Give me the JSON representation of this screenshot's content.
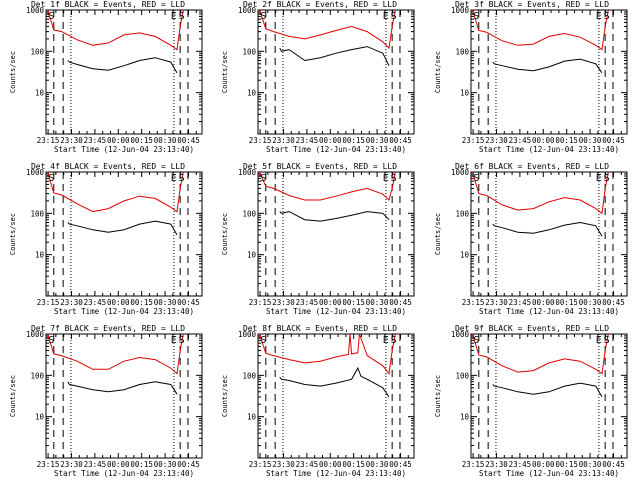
{
  "figure": {
    "title_template": "Det {n}f BLACK = Events, RED = LLD",
    "x_axis_label": "Start Time (12-Jun-04 23:13:40)",
    "y_axis_label": "Counts/sec",
    "x_tick_labels": [
      "23:15",
      "23:30",
      "23:45",
      "00:00",
      "00:15",
      "00:30",
      "00:45"
    ],
    "y_tick_labels": [
      "10",
      "100",
      "1000"
    ],
    "flag_labels": [
      "S",
      "E",
      "S"
    ],
    "colors": {
      "events": "#000000",
      "lld": "#e00000"
    }
  },
  "chart_data": [
    {
      "type": "line",
      "title": "Det 1f BLACK = Events, RED = LLD",
      "det": 1,
      "xlabel": "Start Time (12-Jun-04 23:13:40)",
      "ylabel": "Counts/sec",
      "x_unit": "minutes since 23:13:40",
      "xlim": [
        0,
        100
      ],
      "ylim": [
        1,
        1000
      ],
      "y_scale": "log",
      "series": [
        {
          "name": "LLD",
          "color": "red",
          "x": [
            1,
            5,
            10,
            20,
            30,
            40,
            50,
            60,
            70,
            80,
            84,
            86,
            88
          ],
          "y": [
            1000,
            330,
            300,
            190,
            140,
            160,
            250,
            280,
            230,
            140,
            110,
            400,
            1000
          ]
        },
        {
          "name": "Events",
          "color": "black",
          "x": [
            14,
            15,
            20,
            30,
            40,
            50,
            60,
            70,
            80,
            84
          ],
          "y": [
            60,
            55,
            48,
            38,
            35,
            45,
            60,
            70,
            55,
            30
          ]
        }
      ],
      "vlines": {
        "dashed": [
          5,
          11,
          86,
          91
        ],
        "dotted": [
          16,
          82
        ]
      },
      "flags": [
        "S",
        "E",
        "S"
      ]
    },
    {
      "type": "line",
      "title": "Det 2f BLACK = Events, RED = LLD",
      "det": 2,
      "xlabel": "Start Time (12-Jun-04 23:13:40)",
      "ylabel": "Counts/sec",
      "x_unit": "minutes since 23:13:40",
      "xlim": [
        0,
        100
      ],
      "ylim": [
        1,
        1000
      ],
      "y_scale": "log",
      "series": [
        {
          "name": "LLD",
          "color": "red",
          "x": [
            1,
            5,
            10,
            20,
            30,
            40,
            50,
            60,
            70,
            80,
            84,
            86,
            88
          ],
          "y": [
            1000,
            350,
            300,
            230,
            200,
            250,
            320,
            400,
            300,
            170,
            120,
            400,
            1000
          ]
        },
        {
          "name": "Events",
          "color": "black",
          "x": [
            14,
            15,
            20,
            30,
            40,
            50,
            60,
            70,
            80,
            84
          ],
          "y": [
            120,
            100,
            110,
            60,
            70,
            90,
            110,
            130,
            90,
            45
          ]
        }
      ],
      "vlines": {
        "dashed": [
          5,
          11,
          86,
          91
        ],
        "dotted": [
          16,
          82
        ]
      },
      "flags": [
        "S",
        "E",
        "S"
      ]
    },
    {
      "type": "line",
      "title": "Det 3f BLACK = Events, RED = LLD",
      "det": 3,
      "xlabel": "Start Time (12-Jun-04 23:13:40)",
      "ylabel": "Counts/sec",
      "x_unit": "minutes since 23:13:40",
      "xlim": [
        0,
        100
      ],
      "ylim": [
        1,
        1000
      ],
      "y_scale": "log",
      "series": [
        {
          "name": "LLD",
          "color": "red",
          "x": [
            1,
            5,
            10,
            20,
            30,
            40,
            50,
            60,
            70,
            80,
            84,
            86,
            88
          ],
          "y": [
            1000,
            320,
            290,
            180,
            140,
            150,
            230,
            270,
            220,
            140,
            110,
            400,
            1000
          ]
        },
        {
          "name": "Events",
          "color": "black",
          "x": [
            14,
            15,
            20,
            30,
            40,
            50,
            60,
            70,
            80,
            84
          ],
          "y": [
            55,
            50,
            45,
            37,
            34,
            42,
            58,
            65,
            50,
            30
          ]
        }
      ],
      "vlines": {
        "dashed": [
          5,
          11,
          86,
          91
        ],
        "dotted": [
          16,
          82
        ]
      },
      "flags": [
        "S",
        "E",
        "S"
      ]
    },
    {
      "type": "line",
      "title": "Det 4f BLACK = Events, RED = LLD",
      "det": 4,
      "xlabel": "Start Time (12-Jun-04 23:13:40)",
      "ylabel": "Counts/sec",
      "x_unit": "minutes since 23:13:40",
      "xlim": [
        0,
        100
      ],
      "ylim": [
        1,
        1000
      ],
      "y_scale": "log",
      "series": [
        {
          "name": "LLD",
          "color": "red",
          "x": [
            1,
            5,
            10,
            20,
            30,
            40,
            50,
            60,
            70,
            80,
            84,
            86,
            88
          ],
          "y": [
            1000,
            310,
            280,
            170,
            110,
            130,
            200,
            260,
            230,
            140,
            110,
            400,
            1000
          ]
        },
        {
          "name": "Events",
          "color": "black",
          "x": [
            14,
            15,
            20,
            30,
            40,
            50,
            60,
            70,
            80,
            84
          ],
          "y": [
            60,
            55,
            50,
            40,
            35,
            40,
            55,
            65,
            55,
            30
          ]
        }
      ],
      "vlines": {
        "dashed": [
          5,
          11,
          86,
          91
        ],
        "dotted": [
          16,
          82
        ]
      },
      "flags": [
        "S",
        "E",
        "S"
      ]
    },
    {
      "type": "line",
      "title": "Det 5f BLACK = Events, RED = LLD",
      "det": 5,
      "xlabel": "Start Time (12-Jun-04 23:13:40)",
      "ylabel": "Counts/sec",
      "x_unit": "minutes since 23:13:40",
      "xlim": [
        0,
        100
      ],
      "ylim": [
        1,
        1000
      ],
      "y_scale": "log",
      "series": [
        {
          "name": "LLD",
          "color": "red",
          "x": [
            1,
            5,
            10,
            20,
            30,
            40,
            50,
            60,
            70,
            80,
            84,
            86,
            88
          ],
          "y": [
            1000,
            450,
            400,
            270,
            210,
            210,
            260,
            330,
            400,
            290,
            210,
            400,
            1000
          ]
        },
        {
          "name": "Events",
          "color": "black",
          "x": [
            14,
            15,
            20,
            30,
            40,
            50,
            60,
            70,
            80,
            84
          ],
          "y": [
            110,
            100,
            110,
            70,
            65,
            75,
            90,
            110,
            100,
            70
          ]
        }
      ],
      "vlines": {
        "dashed": [
          5,
          11,
          86,
          91
        ],
        "dotted": [
          16,
          82
        ]
      },
      "flags": [
        "S",
        "E",
        "S"
      ]
    },
    {
      "type": "line",
      "title": "Det 6f BLACK = Events, RED = LLD",
      "det": 6,
      "xlabel": "Start Time (12-Jun-04 23:13:40)",
      "ylabel": "Counts/sec",
      "x_unit": "minutes since 23:13:40",
      "xlim": [
        0,
        100
      ],
      "ylim": [
        1,
        1000
      ],
      "y_scale": "log",
      "series": [
        {
          "name": "LLD",
          "color": "red",
          "x": [
            1,
            5,
            10,
            20,
            30,
            40,
            50,
            60,
            70,
            80,
            84,
            86,
            88
          ],
          "y": [
            1000,
            300,
            270,
            160,
            120,
            130,
            190,
            240,
            210,
            130,
            100,
            400,
            1000
          ]
        },
        {
          "name": "Events",
          "color": "black",
          "x": [
            14,
            15,
            20,
            30,
            40,
            50,
            60,
            70,
            80,
            84
          ],
          "y": [
            55,
            50,
            45,
            35,
            33,
            40,
            52,
            60,
            50,
            28
          ]
        }
      ],
      "vlines": {
        "dashed": [
          5,
          11,
          86,
          91
        ],
        "dotted": [
          16,
          82
        ]
      },
      "flags": [
        "S",
        "E",
        "S"
      ]
    },
    {
      "type": "line",
      "title": "Det 7f BLACK = Events, RED = LLD",
      "det": 7,
      "xlabel": "Start Time (12-Jun-04 23:13:40)",
      "ylabel": "Counts/sec",
      "x_unit": "minutes since 23:13:40",
      "xlim": [
        0,
        100
      ],
      "ylim": [
        1,
        1000
      ],
      "y_scale": "log",
      "series": [
        {
          "name": "LLD",
          "color": "red",
          "x": [
            1,
            5,
            10,
            20,
            30,
            40,
            50,
            60,
            70,
            80,
            84,
            86,
            88
          ],
          "y": [
            1000,
            330,
            300,
            220,
            140,
            140,
            220,
            270,
            240,
            150,
            110,
            400,
            1000
          ]
        },
        {
          "name": "Events",
          "color": "black",
          "x": [
            14,
            15,
            20,
            30,
            40,
            50,
            60,
            70,
            80,
            84
          ],
          "y": [
            70,
            60,
            55,
            45,
            40,
            45,
            60,
            70,
            60,
            35
          ]
        }
      ],
      "vlines": {
        "dashed": [
          5,
          11,
          86,
          91
        ],
        "dotted": [
          16,
          82
        ]
      },
      "flags": [
        "S",
        "E",
        "S"
      ]
    },
    {
      "type": "line",
      "title": "Det 8f BLACK = Events, RED = LLD",
      "det": 8,
      "xlabel": "Start Time (12-Jun-04 23:13:40)",
      "ylabel": "Counts/sec",
      "x_unit": "minutes since 23:13:40",
      "xlim": [
        0,
        100
      ],
      "ylim": [
        1,
        1000
      ],
      "y_scale": "log",
      "series": [
        {
          "name": "LLD",
          "color": "red",
          "x": [
            1,
            5,
            10,
            20,
            30,
            40,
            50,
            58,
            59,
            60,
            64,
            65,
            70,
            80,
            84,
            86,
            88
          ],
          "y": [
            1000,
            340,
            300,
            240,
            200,
            220,
            280,
            320,
            1000,
            330,
            350,
            1000,
            300,
            170,
            110,
            400,
            1000
          ]
        },
        {
          "name": "Events",
          "color": "black",
          "x": [
            14,
            15,
            20,
            30,
            40,
            50,
            60,
            64,
            66,
            70,
            80,
            84
          ],
          "y": [
            90,
            80,
            75,
            60,
            55,
            65,
            80,
            150,
            95,
            80,
            50,
            30
          ]
        }
      ],
      "vlines": {
        "dashed": [
          5,
          11,
          86,
          91
        ],
        "dotted": [
          16,
          82
        ]
      },
      "flags": [
        "S",
        "E",
        "S"
      ]
    },
    {
      "type": "line",
      "title": "Det 9f BLACK = Events, RED = LLD",
      "det": 9,
      "xlabel": "Start Time (12-Jun-04 23:13:40)",
      "ylabel": "Counts/sec",
      "x_unit": "minutes since 23:13:40",
      "xlim": [
        0,
        100
      ],
      "ylim": [
        1,
        1000
      ],
      "y_scale": "log",
      "series": [
        {
          "name": "LLD",
          "color": "red",
          "x": [
            1,
            5,
            10,
            20,
            30,
            40,
            50,
            60,
            70,
            80,
            84,
            86,
            88
          ],
          "y": [
            1000,
            310,
            280,
            170,
            120,
            130,
            200,
            250,
            220,
            140,
            110,
            400,
            1000
          ]
        },
        {
          "name": "Events",
          "color": "black",
          "x": [
            14,
            15,
            20,
            30,
            40,
            50,
            60,
            70,
            80,
            84
          ],
          "y": [
            60,
            55,
            50,
            40,
            35,
            40,
            55,
            65,
            55,
            30
          ]
        }
      ],
      "vlines": {
        "dashed": [
          5,
          11,
          86,
          91
        ],
        "dotted": [
          16,
          82
        ]
      },
      "flags": [
        "S",
        "E",
        "S"
      ]
    }
  ]
}
